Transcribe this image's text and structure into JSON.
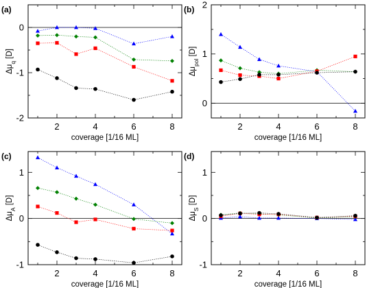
{
  "chart_data": [
    {
      "id": "a",
      "type": "scatter",
      "panel_label": "(a)",
      "xlabel": "coverage [1/16 ML]",
      "ylabel": {
        "main": "Δμ",
        "sub": "q",
        "unit": " [D]"
      },
      "xlim": [
        0.5,
        8.5
      ],
      "ylim": [
        -2,
        0.5
      ],
      "xticks": [
        2,
        4,
        6,
        8
      ],
      "yticks": [
        -2,
        -1,
        0
      ],
      "zero_line": true,
      "x": [
        1,
        2,
        3,
        4,
        6,
        8
      ],
      "series": [
        {
          "color": "#0000ff",
          "marker": "triangle",
          "values": [
            -0.08,
            0.0,
            0.0,
            -0.02,
            -0.36,
            -0.2
          ]
        },
        {
          "color": "#008000",
          "marker": "diamond",
          "values": [
            -0.18,
            -0.17,
            -0.2,
            -0.22,
            -0.71,
            -0.74
          ]
        },
        {
          "color": "#ff0000",
          "marker": "square",
          "values": [
            -0.35,
            -0.34,
            -0.59,
            -0.46,
            -0.87,
            -1.18
          ]
        },
        {
          "color": "#000000",
          "marker": "circle",
          "values": [
            -0.93,
            -1.12,
            -1.34,
            -1.36,
            -1.6,
            -1.42
          ]
        }
      ]
    },
    {
      "id": "b",
      "type": "scatter",
      "panel_label": "(b)",
      "xlabel": "coverage [1/16 ML]",
      "ylabel": {
        "main": "Δμ",
        "sub": "pol",
        "unit": " [D]"
      },
      "xlim": [
        0.5,
        8.5
      ],
      "ylim": [
        -0.3,
        2
      ],
      "xticks": [
        2,
        4,
        6,
        8
      ],
      "yticks": [
        0,
        1,
        2
      ],
      "zero_line": true,
      "x": [
        1,
        2,
        3,
        4,
        6,
        8
      ],
      "series": [
        {
          "color": "#0000ff",
          "marker": "triangle",
          "values": [
            1.4,
            1.14,
            0.89,
            0.76,
            0.64,
            -0.16
          ]
        },
        {
          "color": "#008000",
          "marker": "diamond",
          "values": [
            0.87,
            0.71,
            0.63,
            0.6,
            0.67,
            0.64
          ]
        },
        {
          "color": "#ff0000",
          "marker": "square",
          "values": [
            0.67,
            0.57,
            0.55,
            0.5,
            0.65,
            0.95
          ]
        },
        {
          "color": "#000000",
          "marker": "circle",
          "values": [
            0.43,
            0.49,
            0.58,
            0.58,
            0.62,
            0.64
          ]
        }
      ]
    },
    {
      "id": "c",
      "type": "scatter",
      "panel_label": "(c)",
      "xlabel": "coverage [1/16 ML]",
      "ylabel": {
        "main": "Δμ",
        "sub": "A",
        "unit": " [D]"
      },
      "xlim": [
        0.5,
        8.5
      ],
      "ylim": [
        -1,
        1.45
      ],
      "xticks": [
        2,
        4,
        6,
        8
      ],
      "yticks": [
        -1,
        0,
        1
      ],
      "zero_line": true,
      "x": [
        1,
        2,
        3,
        4,
        6,
        8
      ],
      "series": [
        {
          "color": "#0000ff",
          "marker": "triangle",
          "values": [
            1.32,
            1.1,
            0.92,
            0.74,
            0.3,
            -0.33
          ]
        },
        {
          "color": "#008000",
          "marker": "diamond",
          "values": [
            0.66,
            0.57,
            0.43,
            0.3,
            -0.01,
            -0.1
          ]
        },
        {
          "color": "#ff0000",
          "marker": "square",
          "values": [
            0.26,
            0.12,
            -0.08,
            -0.02,
            -0.22,
            -0.26
          ]
        },
        {
          "color": "#000000",
          "marker": "circle",
          "values": [
            -0.57,
            -0.73,
            -0.86,
            -0.88,
            -0.96,
            -0.82
          ]
        }
      ]
    },
    {
      "id": "d",
      "type": "scatter",
      "panel_label": "(d)",
      "xlabel": "coverage [1/16 ML]",
      "ylabel": {
        "main": "Δμ",
        "sub": "S",
        "unit": " [D]"
      },
      "xlim": [
        0.5,
        8.5
      ],
      "ylim": [
        -1,
        1.45
      ],
      "xticks": [
        2,
        4,
        6,
        8
      ],
      "yticks": [
        -1,
        0,
        1
      ],
      "zero_line": true,
      "x": [
        1,
        2,
        3,
        4,
        6,
        8
      ],
      "series": [
        {
          "color": "#0000ff",
          "marker": "triangle",
          "values": [
            0.01,
            0.04,
            0.01,
            0.01,
            0.0,
            -0.02
          ]
        },
        {
          "color": "#008000",
          "marker": "diamond",
          "values": [
            0.08,
            0.12,
            0.1,
            0.08,
            0.01,
            0.04
          ]
        },
        {
          "color": "#ff0000",
          "marker": "square",
          "values": [
            0.05,
            0.11,
            0.09,
            0.09,
            0.02,
            0.05
          ]
        },
        {
          "color": "#000000",
          "marker": "circle",
          "values": [
            0.07,
            0.11,
            0.12,
            0.1,
            0.02,
            0.06
          ]
        }
      ]
    }
  ]
}
